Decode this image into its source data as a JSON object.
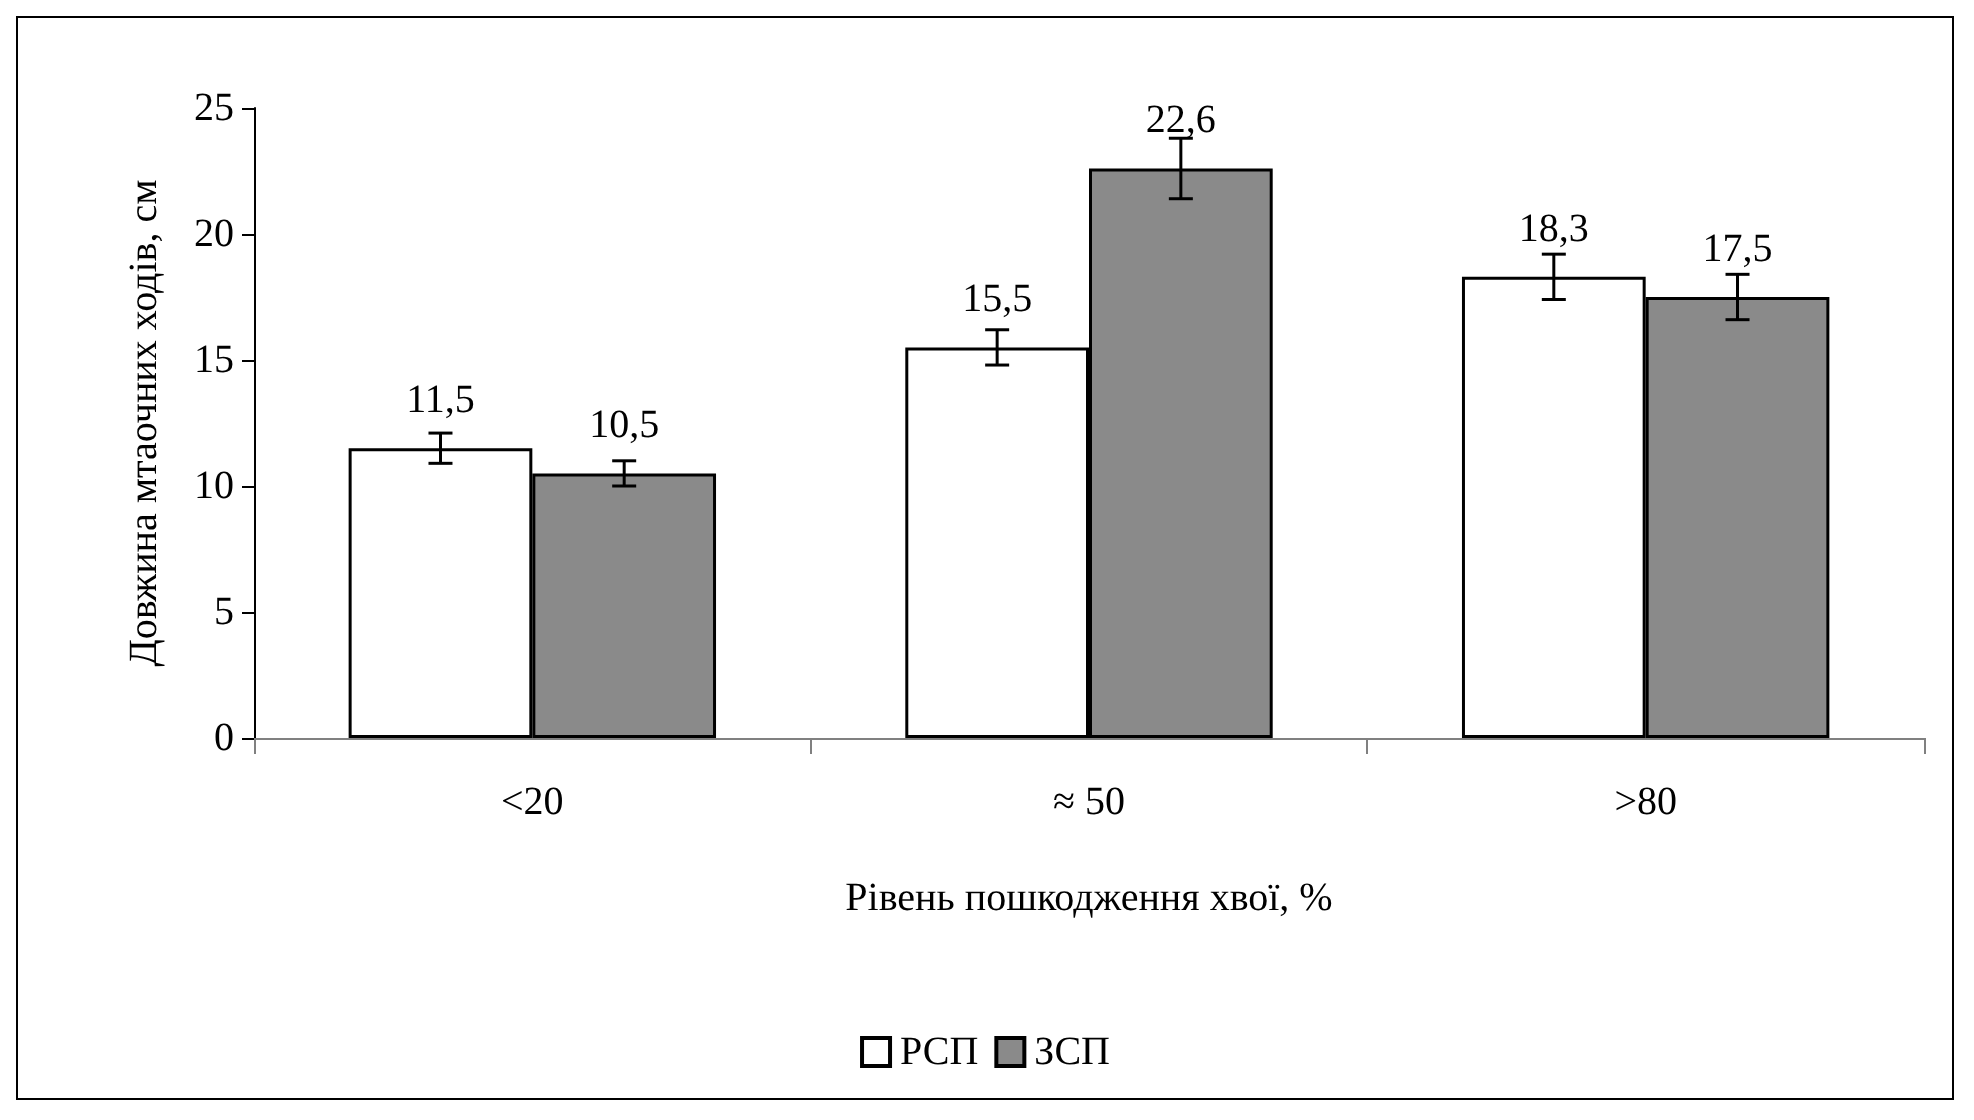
{
  "chart_data": {
    "type": "bar",
    "xlabel": "Рівень пошкодження хвої, %",
    "ylabel": "Довжина мтаочних ходів, см",
    "categories": [
      "<20",
      "≈ 50",
      ">80"
    ],
    "series": [
      {
        "name": "РСП",
        "color": "#ffffff",
        "values": [
          11.5,
          15.5,
          18.3
        ],
        "value_labels": [
          "11,5",
          "15,5",
          "18,3"
        ],
        "errors": [
          0.6,
          0.7,
          0.9
        ]
      },
      {
        "name": "ЗСП",
        "color": "#8a8a8a",
        "values": [
          10.5,
          22.6,
          17.5
        ],
        "value_labels": [
          "10,5",
          "22,6",
          "17,5"
        ],
        "errors": [
          0.5,
          1.2,
          0.9
        ]
      }
    ],
    "ylim": [
      0,
      25
    ],
    "yticks": [
      0,
      5,
      10,
      15,
      20,
      25
    ],
    "grid": false,
    "legend": "bottom"
  }
}
